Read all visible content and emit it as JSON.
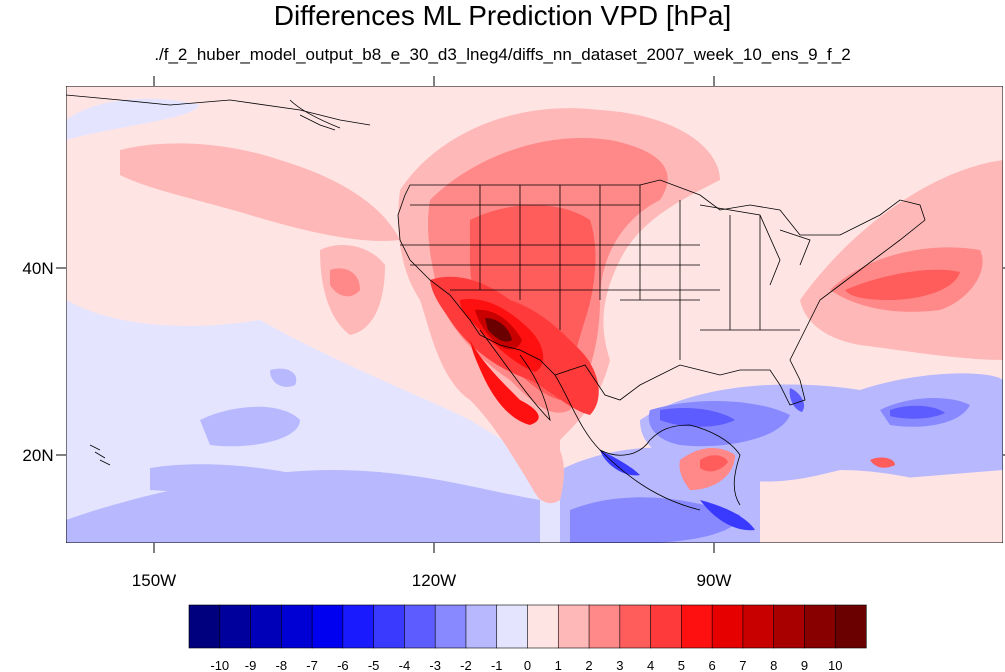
{
  "title": "Differences ML Prediction VPD [hPa]",
  "subtitle": "./f_2_huber_model_output_b8_e_30_d3_lneg4/diffs_nn_dataset_2007_week_10_ens_9_f_2",
  "lat_labels": [
    "40N",
    "20N"
  ],
  "lon_labels": [
    "150W",
    "120W",
    "90W"
  ],
  "colorbar": {
    "labels": [
      "-10",
      "-9",
      "-8",
      "-7",
      "-6",
      "-5",
      "-4",
      "-3",
      "-2",
      "-1",
      "0",
      "1",
      "2",
      "3",
      "4",
      "5",
      "6",
      "7",
      "8",
      "9",
      "10"
    ],
    "colors": [
      "#00007f",
      "#00009c",
      "#0000b8",
      "#0000d4",
      "#0000f0",
      "#1a1aff",
      "#3a3aff",
      "#5c5cff",
      "#8888ff",
      "#b8b8ff",
      "#e4e4ff",
      "#ffe4e4",
      "#ffb8b8",
      "#ff8888",
      "#ff5c5c",
      "#ff3a3a",
      "#ff1010",
      "#e60000",
      "#c80000",
      "#a80000",
      "#880000",
      "#6a0000"
    ]
  }
}
